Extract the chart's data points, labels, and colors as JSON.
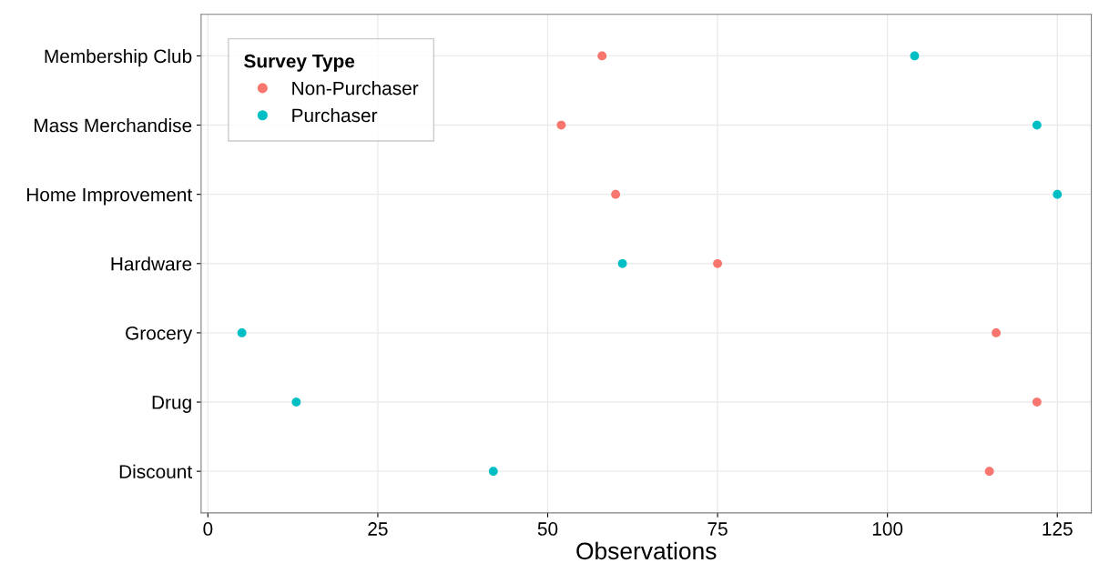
{
  "chart_data": {
    "type": "scatter",
    "orientation": "horizontal",
    "xlabel": "Observations",
    "legend_title": "Survey Type",
    "categories": [
      "Membership Club",
      "Mass Merchandise",
      "Home Improvement",
      "Hardware",
      "Grocery",
      "Drug",
      "Discount"
    ],
    "series": [
      {
        "name": "Non-Purchaser",
        "color": "#f8766d",
        "values": [
          58,
          52,
          60,
          75,
          116,
          122,
          115
        ]
      },
      {
        "name": "Purchaser",
        "color": "#00bfc4",
        "values": [
          104,
          122,
          125,
          61,
          5,
          13,
          42
        ]
      }
    ],
    "xlim": [
      -1,
      130
    ],
    "xticks": [
      0,
      25,
      50,
      75,
      100,
      125
    ],
    "grid": true,
    "legend": "top left",
    "marker": "circle"
  }
}
